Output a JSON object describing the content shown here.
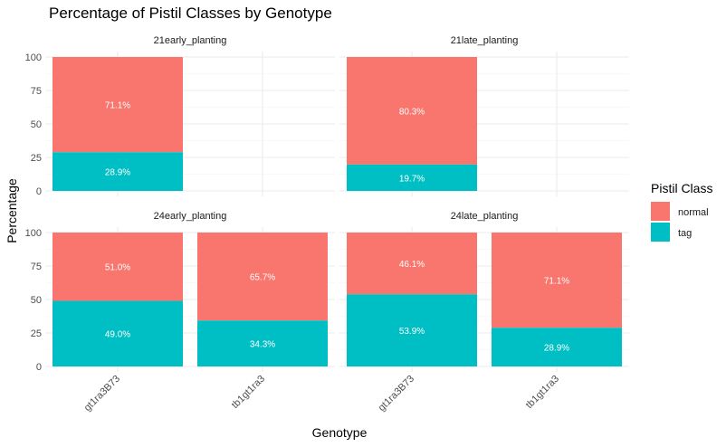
{
  "chart_data": {
    "type": "bar",
    "stacked": true,
    "title": "Percentage of Pistil Classes by Genotype",
    "xlabel": "Genotype",
    "ylabel": "Percentage",
    "ylim": [
      0,
      100
    ],
    "y_ticks": [
      "0",
      "25",
      "50",
      "75",
      "100"
    ],
    "categories": [
      "gt1ra3B73",
      "tb1gt1ra3"
    ],
    "grid": true,
    "legend": {
      "title": "Pistil Class",
      "position": "right",
      "items": [
        {
          "name": "normal",
          "color": "#F8766D"
        },
        {
          "name": "tag",
          "color": "#00BFC4"
        }
      ]
    },
    "facets": [
      {
        "label": "21early_planting",
        "bars": [
          {
            "category": "gt1ra3B73",
            "tag": 28.9,
            "normal": 71.1,
            "tag_label": "28.9%",
            "normal_label": "71.1%"
          }
        ]
      },
      {
        "label": "21late_planting",
        "bars": [
          {
            "category": "gt1ra3B73",
            "tag": 19.7,
            "normal": 80.3,
            "tag_label": "19.7%",
            "normal_label": "80.3%"
          }
        ]
      },
      {
        "label": "24early_planting",
        "bars": [
          {
            "category": "gt1ra3B73",
            "tag": 49.0,
            "normal": 51.0,
            "tag_label": "49.0%",
            "normal_label": "51.0%"
          },
          {
            "category": "tb1gt1ra3",
            "tag": 34.3,
            "normal": 65.7,
            "tag_label": "34.3%",
            "normal_label": "65.7%"
          }
        ]
      },
      {
        "label": "24late_planting",
        "bars": [
          {
            "category": "gt1ra3B73",
            "tag": 53.9,
            "normal": 46.1,
            "tag_label": "53.9%",
            "normal_label": "46.1%"
          },
          {
            "category": "tb1gt1ra3",
            "tag": 28.9,
            "normal": 71.1,
            "tag_label": "28.9%",
            "normal_label": "71.1%"
          }
        ]
      }
    ]
  }
}
